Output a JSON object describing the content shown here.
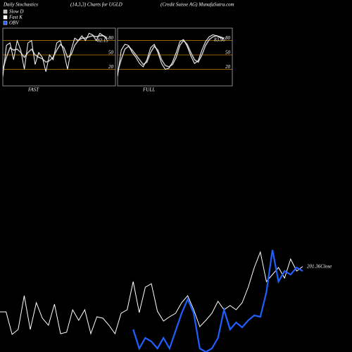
{
  "header": {
    "title": "Daily Stochastics",
    "subtitle": "(14,3,3) Charts for UGLD",
    "source": "(Credit Suisse  AG) MunafaSutra.com"
  },
  "chart_data": [
    {
      "type": "stochastic",
      "label": "FAST",
      "ylim": [
        0,
        100
      ],
      "yticks": [
        20,
        50,
        80
      ],
      "grid": true,
      "grid_color": "#c8820a",
      "series": [
        {
          "name": "Slow D",
          "color": "#bbbbbb",
          "values": [
            20,
            45,
            65,
            60,
            62,
            55,
            45,
            55,
            62,
            50,
            45,
            42,
            35,
            38,
            45,
            60,
            72,
            65,
            45,
            50,
            70,
            80,
            85,
            85,
            88,
            90,
            88,
            90,
            90,
            86
          ]
        },
        {
          "name": "Fast K",
          "color": "#ffffff",
          "values": [
            5,
            70,
            75,
            40,
            80,
            60,
            20,
            75,
            80,
            30,
            55,
            45,
            15,
            50,
            40,
            75,
            80,
            55,
            20,
            60,
            85,
            80,
            90,
            80,
            95,
            92,
            80,
            95,
            90,
            82.15
          ]
        }
      ]
    },
    {
      "type": "stochastic",
      "label": "FULL",
      "ylim": [
        0,
        100
      ],
      "yticks": [
        20,
        50,
        80
      ],
      "grid": true,
      "grid_color": "#c8820a",
      "series": [
        {
          "name": "Slow D",
          "color": "#bbbbbb",
          "values": [
            15,
            40,
            62,
            68,
            60,
            50,
            40,
            30,
            35,
            55,
            68,
            60,
            40,
            28,
            25,
            30,
            45,
            70,
            80,
            72,
            55,
            40,
            35,
            50,
            70,
            82,
            88,
            90,
            88,
            85
          ]
        },
        {
          "name": "Fast K",
          "color": "#ffffff",
          "values": [
            5,
            60,
            72,
            70,
            55,
            45,
            32,
            25,
            40,
            65,
            72,
            55,
            32,
            20,
            22,
            35,
            55,
            78,
            82,
            68,
            48,
            32,
            38,
            60,
            78,
            88,
            92,
            90,
            86,
            83.96
          ]
        }
      ]
    },
    {
      "type": "line",
      "ylim": [
        80,
        230
      ],
      "y2lim": [
        80,
        230
      ],
      "series": [
        {
          "name": "Close",
          "color": "#ffffff",
          "values": [
            137,
            137,
            105,
            112,
            160,
            112,
            150,
            128,
            118,
            148,
            106,
            108,
            140,
            125,
            140,
            106,
            130,
            128,
            118,
            106,
            135,
            140,
            180,
            136,
            172,
            177,
            138,
            124,
            130,
            135,
            150,
            160,
            140,
            116,
            125,
            135,
            152,
            140,
            146,
            140,
            150,
            172,
            200,
            222,
            180,
            190,
            200,
            185,
            212,
            195,
            201.36
          ]
        },
        {
          "name": "OBV",
          "color": "#1f5fff",
          "axis": "y2",
          "values": [
            null,
            null,
            null,
            null,
            null,
            null,
            null,
            null,
            null,
            null,
            null,
            null,
            null,
            null,
            null,
            null,
            null,
            null,
            null,
            null,
            null,
            null,
            112,
            85,
            100,
            95,
            85,
            100,
            85,
            110,
            135,
            155,
            135,
            85,
            80,
            85,
            100,
            140,
            112,
            122,
            115,
            125,
            132,
            130,
            165,
            225,
            180,
            195,
            190,
            200,
            195
          ]
        }
      ]
    }
  ]
}
